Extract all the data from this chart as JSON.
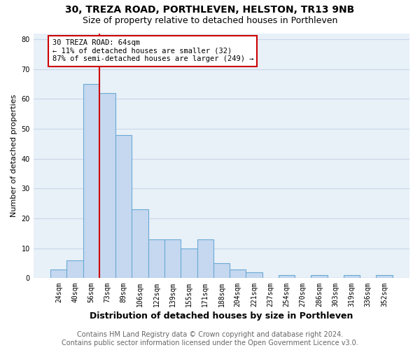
{
  "title_line1": "30, TREZA ROAD, PORTHLEVEN, HELSTON, TR13 9NB",
  "title_line2": "Size of property relative to detached houses in Porthleven",
  "xlabel": "Distribution of detached houses by size in Porthleven",
  "ylabel": "Number of detached properties",
  "bar_labels": [
    "24sqm",
    "40sqm",
    "56sqm",
    "73sqm",
    "89sqm",
    "106sqm",
    "122sqm",
    "139sqm",
    "155sqm",
    "171sqm",
    "188sqm",
    "204sqm",
    "221sqm",
    "237sqm",
    "254sqm",
    "270sqm",
    "286sqm",
    "303sqm",
    "319sqm",
    "336sqm",
    "352sqm"
  ],
  "bar_values": [
    3,
    6,
    65,
    62,
    48,
    23,
    13,
    13,
    10,
    13,
    5,
    3,
    2,
    0,
    1,
    0,
    1,
    0,
    1,
    0,
    1
  ],
  "bar_color": "#c5d8f0",
  "bar_edgecolor": "#6aaad4",
  "bar_linewidth": 0.8,
  "red_line_x": 2.5,
  "red_line_color": "#cc0000",
  "annotation_text": "30 TREZA ROAD: 64sqm\n← 11% of detached houses are smaller (32)\n87% of semi-detached houses are larger (249) →",
  "annotation_box_facecolor": "#ffffff",
  "annotation_box_edgecolor": "#cc0000",
  "ylim": [
    0,
    82
  ],
  "yticks": [
    0,
    10,
    20,
    30,
    40,
    50,
    60,
    70,
    80
  ],
  "footer_line1": "Contains HM Land Registry data © Crown copyright and database right 2024.",
  "footer_line2": "Contains public sector information licensed under the Open Government Licence v3.0.",
  "bg_color": "#ffffff",
  "plot_bg_color": "#e8f0f8",
  "grid_color": "#c8d8e8",
  "title_fontsize": 10,
  "subtitle_fontsize": 9,
  "ylabel_fontsize": 8,
  "xlabel_fontsize": 9,
  "tick_fontsize": 7,
  "annotation_fontsize": 7.5,
  "footer_fontsize": 7
}
